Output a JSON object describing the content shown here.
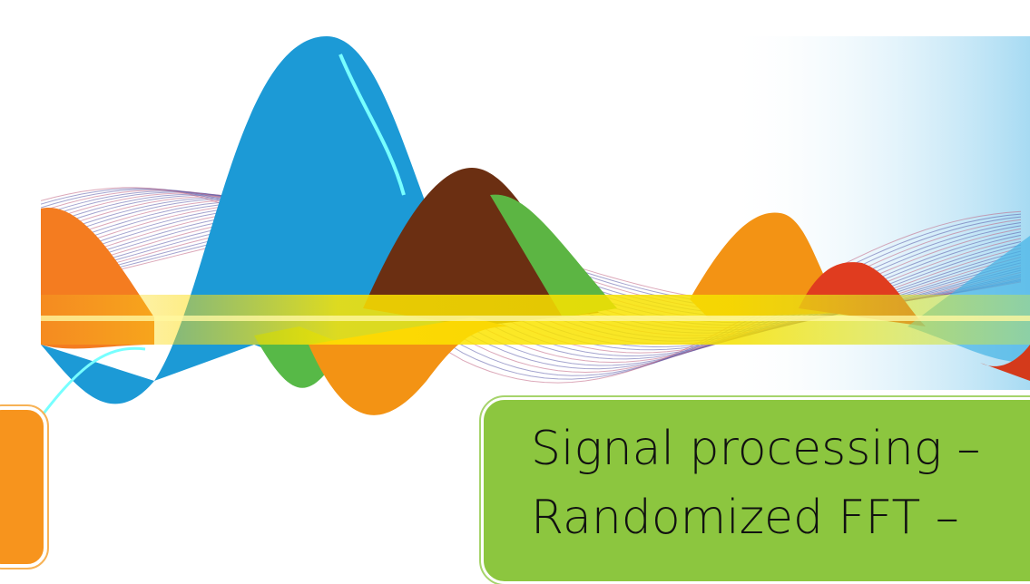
{
  "slide": {
    "title_lines": [
      "Signal processing –",
      "Randomized FFT –"
    ]
  }
}
